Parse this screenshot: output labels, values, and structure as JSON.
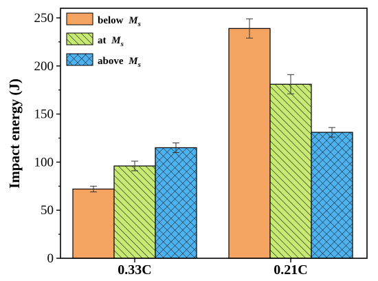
{
  "chart_data": {
    "type": "bar",
    "categories": [
      "0.33C",
      "0.21C"
    ],
    "series": [
      {
        "name": "below",
        "subscript_symbol": "M",
        "subscript": "s",
        "values": [
          72,
          239
        ],
        "errors": [
          3,
          10
        ],
        "color": "#F4A460",
        "pattern": "solid"
      },
      {
        "name": "at",
        "subscript_symbol": "M",
        "subscript": "s",
        "values": [
          96,
          181
        ],
        "errors": [
          5,
          10
        ],
        "color": "#C6EA72",
        "pattern": "diagonal-hatch"
      },
      {
        "name": "above",
        "subscript_symbol": "M",
        "subscript": "s",
        "values": [
          115,
          131
        ],
        "errors": [
          5,
          5
        ],
        "color": "#4DB3F0",
        "pattern": "cross-hatch"
      }
    ],
    "xlabel": "",
    "ylabel": "Impact energy (J)",
    "ylim": [
      0,
      260
    ],
    "yticks": [
      0,
      50,
      100,
      150,
      200,
      250
    ],
    "grid": false,
    "legend_position": "top-left"
  }
}
